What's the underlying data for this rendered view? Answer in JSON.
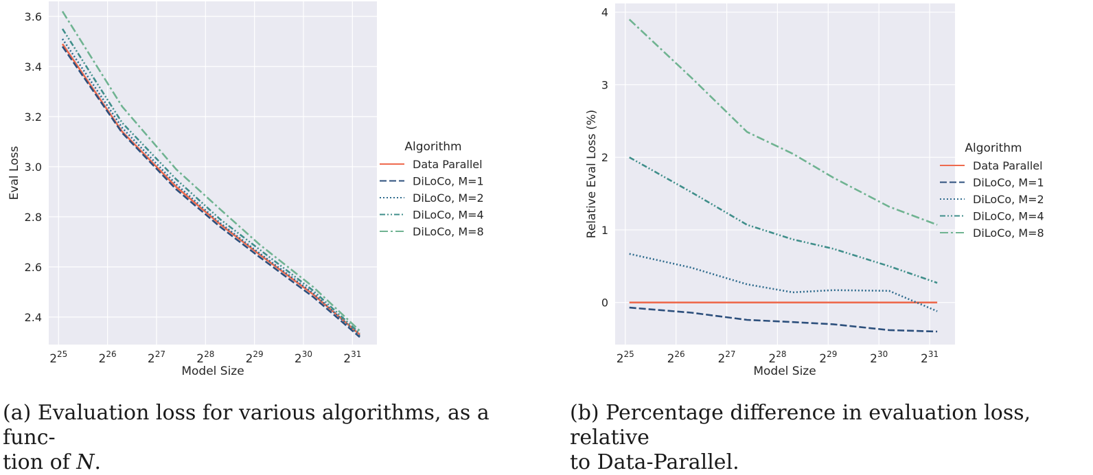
{
  "chart_data": [
    {
      "type": "line",
      "title": "",
      "xlabel": "Model Size",
      "ylabel": "Eval Loss",
      "x_scale": "log2",
      "x": [
        25.08,
        26.3,
        27.4,
        28.3,
        29.1,
        30.2,
        31.15
      ],
      "xlim": [
        24.8,
        31.5
      ],
      "ylim": [
        2.29,
        3.66
      ],
      "x_ticks": [
        25,
        26,
        27,
        28,
        29,
        30,
        31
      ],
      "y_ticks": [
        2.4,
        2.6,
        2.8,
        3.0,
        3.2,
        3.4,
        3.6
      ],
      "y_tick_labels": [
        "2.4",
        "2.6",
        "2.8",
        "3.0",
        "3.2",
        "3.4",
        "3.6"
      ],
      "grid": true,
      "legend_title": "Algorithm",
      "legend_position": "right",
      "series": [
        {
          "name": "Data Parallel",
          "color": "#ee6a4d",
          "style": "solid",
          "values": [
            3.49,
            3.14,
            2.92,
            2.77,
            2.65,
            2.49,
            2.33
          ]
        },
        {
          "name": "DiLoCo, M=1",
          "color": "#2c4f7c",
          "style": "dashed",
          "values": [
            3.48,
            3.135,
            2.91,
            2.76,
            2.64,
            2.48,
            2.32
          ]
        },
        {
          "name": "DiLoCo, M=2",
          "color": "#2d6a8c",
          "style": "dotted",
          "values": [
            3.51,
            3.155,
            2.93,
            2.775,
            2.655,
            2.495,
            2.325
          ]
        },
        {
          "name": "DiLoCo, M=4",
          "color": "#3f8e8a",
          "style": "dashdotdot",
          "values": [
            3.55,
            3.175,
            2.95,
            2.79,
            2.67,
            2.505,
            2.335
          ]
        },
        {
          "name": "DiLoCo, M=8",
          "color": "#6fb391",
          "style": "dashdot",
          "values": [
            3.62,
            3.24,
            2.99,
            2.83,
            2.69,
            2.52,
            2.345
          ]
        }
      ]
    },
    {
      "type": "line",
      "title": "",
      "xlabel": "Model Size",
      "ylabel": "Relative Eval Loss (%)",
      "x_scale": "log2",
      "x": [
        25.08,
        26.3,
        27.4,
        28.3,
        29.1,
        30.2,
        31.15
      ],
      "xlim": [
        24.8,
        31.5
      ],
      "ylim": [
        -0.58,
        4.12
      ],
      "x_ticks": [
        25,
        26,
        27,
        28,
        29,
        30,
        31
      ],
      "y_ticks": [
        0,
        1,
        2,
        3,
        4
      ],
      "y_tick_labels": [
        "0",
        "1",
        "2",
        "3",
        "4"
      ],
      "grid": true,
      "legend_title": "Algorithm",
      "legend_position": "right",
      "series": [
        {
          "name": "Data Parallel",
          "color": "#ee6a4d",
          "style": "solid",
          "values": [
            0,
            0,
            0,
            0,
            0,
            0,
            0
          ]
        },
        {
          "name": "DiLoCo, M=1",
          "color": "#2c4f7c",
          "style": "dashed",
          "values": [
            -0.07,
            -0.14,
            -0.24,
            -0.27,
            -0.3,
            -0.38,
            -0.4
          ]
        },
        {
          "name": "DiLoCo, M=2",
          "color": "#2d6a8c",
          "style": "dotted",
          "values": [
            0.67,
            0.48,
            0.25,
            0.14,
            0.17,
            0.16,
            -0.12
          ]
        },
        {
          "name": "DiLoCo, M=4",
          "color": "#3f8e8a",
          "style": "dashdotdot",
          "values": [
            2.0,
            1.52,
            1.07,
            0.87,
            0.74,
            0.5,
            0.27
          ]
        },
        {
          "name": "DiLoCo, M=8",
          "color": "#6fb391",
          "style": "dashdot",
          "values": [
            3.9,
            3.1,
            2.35,
            2.05,
            1.72,
            1.32,
            1.07
          ]
        }
      ]
    }
  ],
  "captions": {
    "a_pre": "(a) Evaluation loss for various algorithms, as a func-",
    "a_post1": "tion of ",
    "a_var": "N",
    "a_post2": ".",
    "b_line1": "(b) Percentage difference in evaluation loss, relative",
    "b_line2": "to Data-Parallel."
  }
}
